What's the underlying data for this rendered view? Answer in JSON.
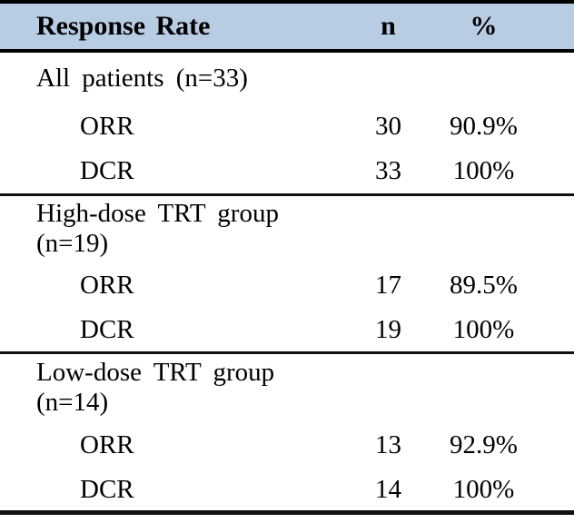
{
  "colors": {
    "header_bg": "#b8cce4",
    "border": "#000000",
    "text": "#000000"
  },
  "table": {
    "header": {
      "label": "Response Rate",
      "n": "n",
      "pct": "%"
    },
    "sections": [
      {
        "title": "All patients (n=33)",
        "rows": [
          {
            "label": "ORR",
            "n": "30",
            "pct": "90.9%"
          },
          {
            "label": "DCR",
            "n": "33",
            "pct": "100%"
          }
        ]
      },
      {
        "title": "High-dose TRT group (n=19)",
        "rows": [
          {
            "label": "ORR",
            "n": "17",
            "pct": "89.5%"
          },
          {
            "label": "DCR",
            "n": "19",
            "pct": "100%"
          }
        ]
      },
      {
        "title": "Low-dose TRT group (n=14)",
        "rows": [
          {
            "label": "ORR",
            "n": "13",
            "pct": "92.9%"
          },
          {
            "label": "DCR",
            "n": "14",
            "pct": "100%"
          }
        ]
      }
    ]
  }
}
